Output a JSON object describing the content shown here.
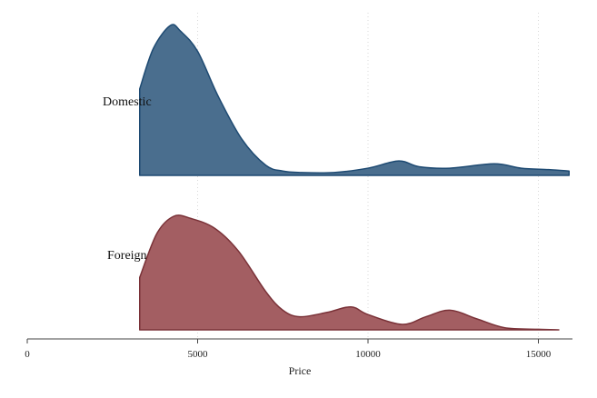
{
  "chart_data": {
    "type": "area",
    "xlabel": "Price",
    "xlim": [
      0,
      16000
    ],
    "x_ticks": [
      0,
      5000,
      10000,
      15000
    ],
    "x_tick_labels": [
      "0",
      "5000",
      "10000",
      "15000"
    ],
    "grid": "vertical dotted",
    "series": [
      {
        "name": "Domestic",
        "color": "#4a6e8e",
        "edge_color": "#1e4a72",
        "x": [
          3300,
          3700,
          4200,
          4500,
          5000,
          5600,
          6300,
          7000,
          7500,
          8000,
          9000,
          10000,
          10900,
          11500,
          12400,
          13700,
          14500,
          15300,
          15900
        ],
        "values": [
          0.6,
          0.88,
          1.04,
          1.0,
          0.86,
          0.55,
          0.25,
          0.07,
          0.03,
          0.02,
          0.02,
          0.05,
          0.1,
          0.06,
          0.05,
          0.08,
          0.05,
          0.04,
          0.03
        ]
      },
      {
        "name": "Foreign",
        "color": "#a35e62",
        "edge_color": "#7a3238",
        "x": [
          3300,
          3800,
          4300,
          4800,
          5500,
          6200,
          7000,
          7500,
          8000,
          8800,
          9500,
          10000,
          11000,
          11700,
          12400,
          13200,
          14000,
          15000,
          15600
        ],
        "values": [
          0.48,
          0.88,
          1.04,
          1.02,
          0.93,
          0.72,
          0.35,
          0.18,
          0.12,
          0.16,
          0.21,
          0.14,
          0.05,
          0.12,
          0.18,
          0.1,
          0.02,
          0.005,
          0.0
        ]
      }
    ]
  }
}
